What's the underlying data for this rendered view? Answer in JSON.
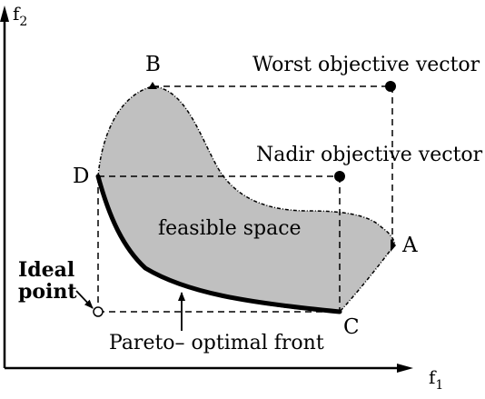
{
  "axes": {
    "x_label": "f",
    "x_subscript": "1",
    "y_label": "f",
    "y_subscript": "2"
  },
  "points": {
    "A": "A",
    "B": "B",
    "C": "C",
    "D": "D"
  },
  "annotations": {
    "worst": "Worst objective vector",
    "nadir": "Nadir objective vector",
    "feasible": "feasible space",
    "ideal_line1": "Ideal",
    "ideal_line2": "point",
    "pareto": "Pareto– optimal front"
  },
  "colors": {
    "region_fill": "#c0c0c0",
    "line": "#000000"
  }
}
